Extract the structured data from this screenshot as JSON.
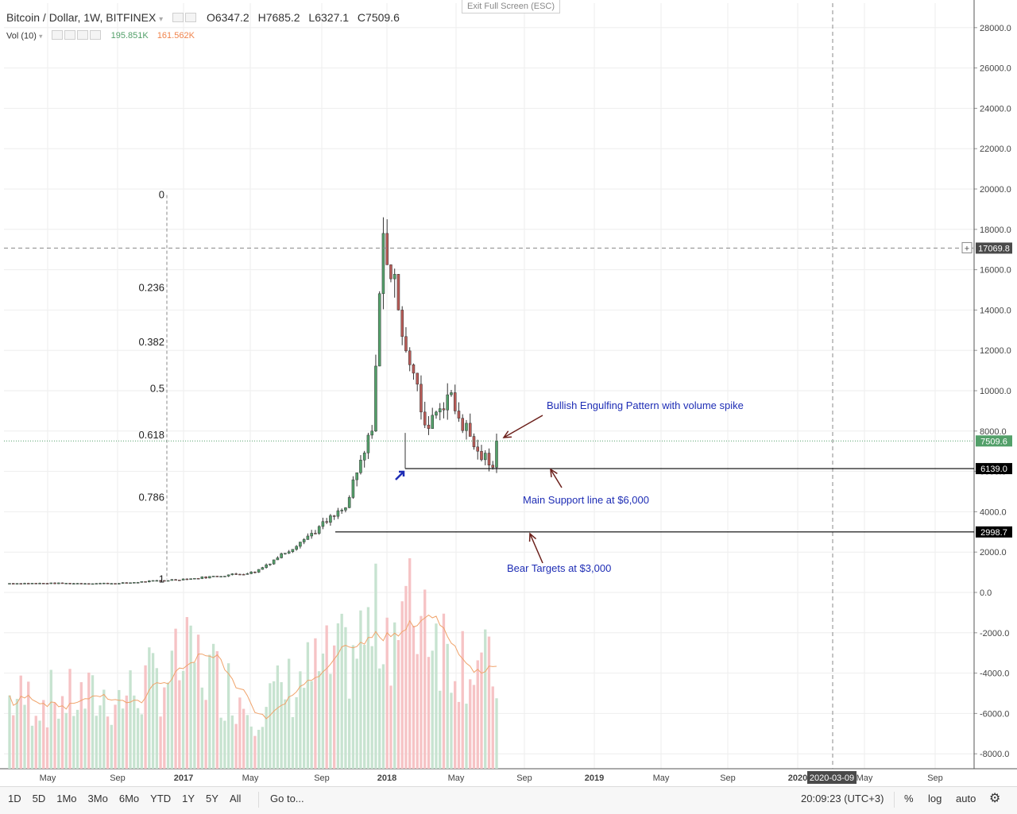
{
  "header": {
    "symbol": "Bitcoin / Dollar, 1W, BITFINEX",
    "ohlc": {
      "o": "O6347.2",
      "h": "H7685.2",
      "l": "L6327.1",
      "c": "C7509.6"
    },
    "exit_fullscreen": "Exit Full Screen (ESC)"
  },
  "volume_header": {
    "label": "Vol (10)",
    "val1": "195.851K",
    "val2": "161.562K"
  },
  "colors": {
    "up": "#53a06a",
    "down": "#b95b57",
    "up_vol": "#c7e3d0",
    "down_vol": "#f6c3c5",
    "ma": "#f0a36b",
    "annotation": "#1e2db5",
    "arrow": "#6b1f1a"
  },
  "bottom_bar": {
    "timeframes": [
      "1D",
      "5D",
      "1Mo",
      "3Mo",
      "6Mo",
      "YTD",
      "1Y",
      "5Y",
      "All"
    ],
    "goto": "Go to...",
    "time": "20:09:23 (UTC+3)",
    "percent": "%",
    "log": "log",
    "auto": "auto",
    "settings_icon": "gear-icon"
  },
  "chart_data": {
    "type": "candlestick",
    "title": "Bitcoin / Dollar, 1W, BITFINEX",
    "ylim": [
      -9000,
      29000
    ],
    "y_ticks": [
      28000,
      26000,
      24000,
      22000,
      20000,
      18000,
      16000,
      14000,
      12000,
      10000,
      8000,
      6000,
      4000,
      2000,
      0,
      -2000,
      -4000,
      -6000,
      -8000
    ],
    "y_tick_labels": [
      "28000.0",
      "26000.0",
      "24000.0",
      "22000.0",
      "20000.0",
      "18000.0",
      "16000.0",
      "14000.0",
      "12000.0",
      "10000.0",
      "8000.0",
      "6000.0",
      "4000.0",
      "2000.0",
      "0.0",
      "-2000.0",
      "-4000.0",
      "-6000.0",
      "-8000.0"
    ],
    "x_labels": [
      "May",
      "Sep",
      "2017",
      "May",
      "Sep",
      "2018",
      "May",
      "Sep",
      "2019",
      "May",
      "Sep",
      "2020",
      "May",
      "Sep"
    ],
    "x_cursor_label": "2020-03-09",
    "price_labels": [
      {
        "key": "crosshair",
        "value": 17069.8,
        "text": "17069.8"
      },
      {
        "key": "last",
        "value": 7509.6,
        "text": "7509.6"
      },
      {
        "key": "support",
        "value": 6139.0,
        "text": "6139.0"
      },
      {
        "key": "bear",
        "value": 2998.7,
        "text": "2998.7"
      }
    ],
    "fib_levels": [
      {
        "ratio": "0",
        "price": 19700
      },
      {
        "ratio": "0.236",
        "price": 15100
      },
      {
        "ratio": "0.382",
        "price": 12400
      },
      {
        "ratio": "0.5",
        "price": 10100
      },
      {
        "ratio": "0.618",
        "price": 7800
      },
      {
        "ratio": "0.786",
        "price": 4700
      },
      {
        "ratio": "1",
        "price": 650
      }
    ],
    "annotations": [
      {
        "text": "Bullish Engulfing Pattern with volume spike"
      },
      {
        "text": "Main Support line at $6,000"
      },
      {
        "text": "Bear Targets at $3,000"
      }
    ],
    "anchors": [
      {
        "close": 450,
        "vol": 35,
        "n": 30
      },
      {
        "close": 700,
        "vol": 55,
        "n": 20
      },
      {
        "close": 1000,
        "vol": 30,
        "n": 16
      },
      {
        "close": 2500,
        "vol": 45,
        "n": 12
      },
      {
        "close": 4200,
        "vol": 55,
        "n": 12
      },
      {
        "close": 8000,
        "vol": 70,
        "n": 7
      },
      {
        "close": 17800,
        "vol": 75,
        "n": 3
      },
      {
        "close": 14000,
        "vol": 72,
        "n": 4
      },
      {
        "close": 8300,
        "vol": 85,
        "n": 7
      },
      {
        "close": 9800,
        "vol": 60,
        "n": 6
      },
      {
        "close": 7000,
        "vol": 55,
        "n": 8
      },
      {
        "close": 6200,
        "vol": 45,
        "n": 4
      },
      {
        "close": 7509.6,
        "vol": 48,
        "n": 1
      }
    ]
  }
}
